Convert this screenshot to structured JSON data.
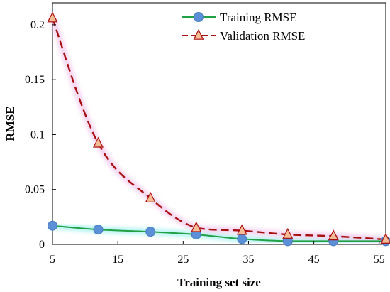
{
  "chart_data": {
    "type": "line",
    "xlabel": "Training set size",
    "ylabel": "RMSE",
    "xlim": [
      5,
      56
    ],
    "ylim": [
      0,
      0.22
    ],
    "x_ticks": [
      5,
      15,
      25,
      35,
      45,
      55
    ],
    "x_tick_labels": [
      "5",
      "15",
      "25",
      "35",
      "45",
      "55"
    ],
    "y_ticks": [
      0,
      0.05,
      0.1,
      0.15,
      0.2
    ],
    "y_tick_labels": [
      "0",
      "0.05",
      "0.1",
      "0.15",
      "0.2"
    ],
    "grid": false,
    "legend_position": "top-right",
    "series": [
      {
        "name": "Training RMSE",
        "line_style": "solid",
        "marker": "circle",
        "color": "#22a046",
        "marker_fill": "#5b8fd6",
        "x": [
          5,
          12,
          20,
          27,
          34,
          41,
          48,
          56
        ],
        "values": [
          0.017,
          0.0135,
          0.0115,
          0.009,
          0.005,
          0.003,
          0.003,
          0.003
        ]
      },
      {
        "name": "Validation RMSE",
        "line_style": "dashed",
        "marker": "triangle",
        "color": "#a80f10",
        "marker_fill": "#f4bd96",
        "x": [
          5,
          12,
          20,
          27,
          34,
          41,
          48,
          56
        ],
        "values": [
          0.206,
          0.092,
          0.042,
          0.015,
          0.0125,
          0.009,
          0.0075,
          0.0045
        ]
      }
    ]
  }
}
